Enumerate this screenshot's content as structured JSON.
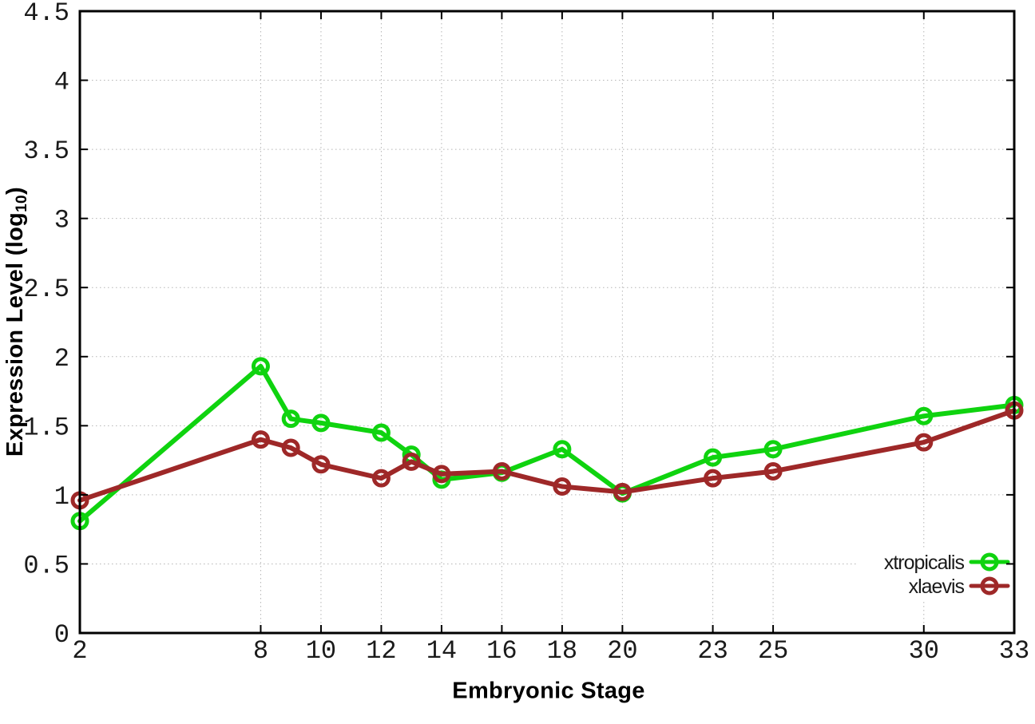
{
  "chart_data": {
    "type": "line",
    "title": "",
    "xlabel": "Embryonic Stage",
    "ylabel": {
      "text": "Expression Level (log",
      "sub": "10",
      "suffix": ")"
    },
    "xlim": [
      2,
      33
    ],
    "ylim": [
      0,
      4.5
    ],
    "grid": true,
    "grid_color": "#b5b5b5",
    "axis_color": "#000000",
    "tick_label_color": "#1a1a1a",
    "legend_position": "bottom-right",
    "marker": "open-circle",
    "x_ticks": [
      2,
      8,
      10,
      12,
      14,
      16,
      18,
      20,
      23,
      25,
      30,
      33
    ],
    "y_ticks": [
      0,
      0.5,
      1,
      1.5,
      2,
      2.5,
      3,
      3.5,
      4,
      4.5
    ],
    "y_tick_labels": [
      "0",
      "0.5",
      "1",
      "1.5",
      "2",
      "2.5",
      "3",
      "3.5",
      "4",
      "4.5"
    ],
    "x": [
      2,
      8,
      9,
      10,
      12,
      13,
      14,
      16,
      18,
      20,
      23,
      25,
      30,
      33
    ],
    "series": [
      {
        "name": "xtropicalis",
        "color": "#0fd30f",
        "values": [
          0.81,
          1.93,
          1.55,
          1.52,
          1.45,
          1.29,
          1.11,
          1.16,
          1.33,
          1.01,
          1.27,
          1.33,
          1.57,
          1.65
        ]
      },
      {
        "name": "xlaevis",
        "color": "#9e2828",
        "values": [
          0.96,
          1.4,
          1.34,
          1.22,
          1.12,
          1.24,
          1.15,
          1.17,
          1.06,
          1.02,
          1.12,
          1.17,
          1.38,
          1.61
        ]
      }
    ]
  }
}
